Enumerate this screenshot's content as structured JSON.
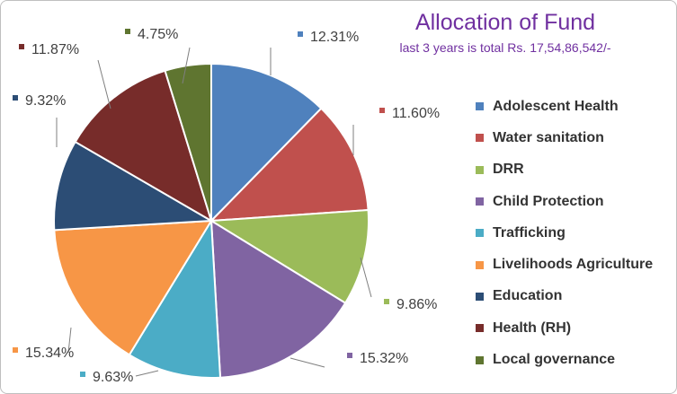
{
  "chart_data": {
    "type": "pie",
    "title": "Allocation of Fund",
    "subtitle": "last 3 years is total Rs. 17,54,86,542/-",
    "legend_position": "right",
    "slices": [
      {
        "name": "Adolescent Health",
        "value": 12.31,
        "label": "12.31%",
        "color": "#4f81bd"
      },
      {
        "name": "Water sanitation",
        "value": 11.6,
        "label": "11.60%",
        "color": "#c0504d"
      },
      {
        "name": "DRR",
        "value": 9.86,
        "label": "9.86%",
        "color": "#9bbb59"
      },
      {
        "name": "Child Protection",
        "value": 15.32,
        "label": "15.32%",
        "color": "#8064a2"
      },
      {
        "name": "Trafficking",
        "value": 9.63,
        "label": "9.63%",
        "color": "#4bacc6"
      },
      {
        "name": "Livelihoods Agriculture",
        "value": 15.34,
        "label": "15.34%",
        "color": "#f79646"
      },
      {
        "name": "Education",
        "value": 9.32,
        "label": "9.32%",
        "color": "#2c4d75"
      },
      {
        "name": "Health (RH)",
        "value": 11.87,
        "label": "11.87%",
        "color": "#772c2a"
      },
      {
        "name": "Local governance",
        "value": 4.75,
        "label": "4.75%",
        "color": "#5f7530"
      }
    ]
  }
}
